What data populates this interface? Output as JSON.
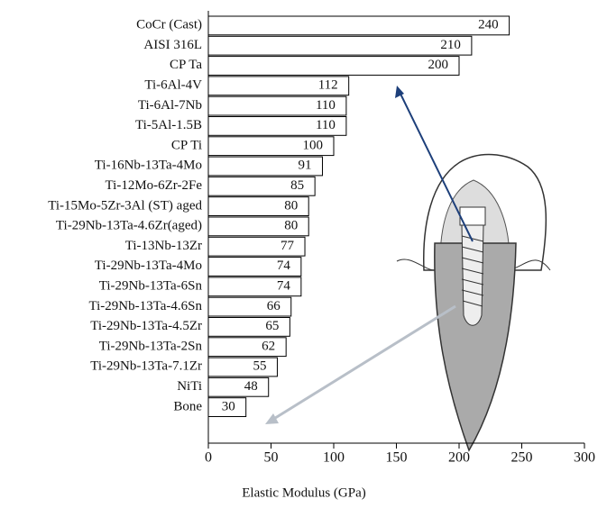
{
  "chart_data": {
    "type": "bar",
    "orientation": "horizontal",
    "xlabel": "Elastic Modulus (GPa)",
    "categories": [
      "CoCr (Cast)",
      "AISI 316L",
      "CP Ta",
      "Ti-6Al-4V",
      "Ti-6Al-7Nb",
      "Ti-5Al-1.5B",
      "CP Ti",
      "Ti-16Nb-13Ta-4Mo",
      "Ti-12Mo-6Zr-2Fe",
      "Ti-15Mo-5Zr-3Al (ST) aged",
      "Ti-29Nb-13Ta-4.6Zr(aged)",
      "Ti-13Nb-13Zr",
      "Ti-29Nb-13Ta-4Mo",
      "Ti-29Nb-13Ta-6Sn",
      "Ti-29Nb-13Ta-4.6Sn",
      "Ti-29Nb-13Ta-4.5Zr",
      "Ti-29Nb-13Ta-2Sn",
      "Ti-29Nb-13Ta-7.1Zr",
      "NiTi",
      "Bone"
    ],
    "values": [
      240,
      210,
      200,
      112,
      110,
      110,
      100,
      91,
      85,
      80,
      80,
      77,
      74,
      74,
      66,
      65,
      62,
      55,
      48,
      30
    ],
    "color": "#ffffff",
    "xlim": [
      0,
      300
    ],
    "xticks": [
      0,
      50,
      100,
      150,
      200,
      250,
      300
    ]
  }
}
